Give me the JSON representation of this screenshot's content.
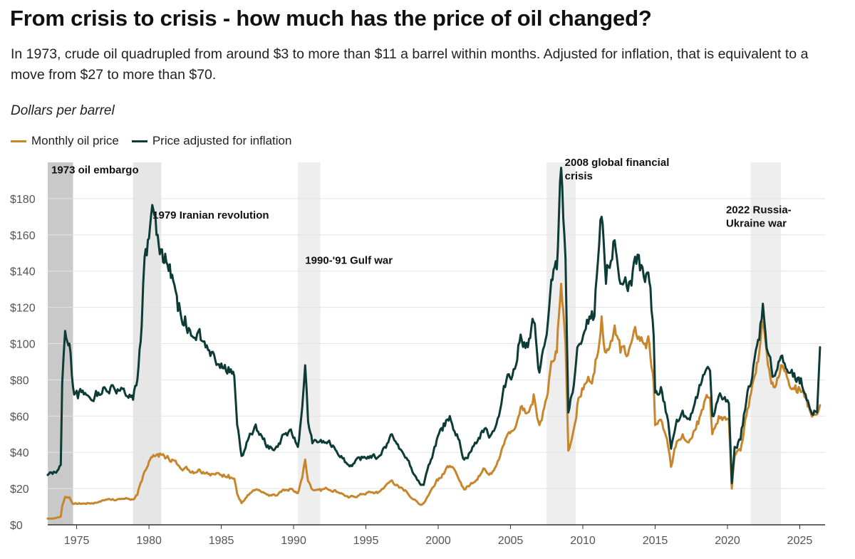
{
  "title": "From crisis to crisis - how much has the price of oil changed?",
  "subtitle": "In 1973, crude oil quadrupled from around $3 to more than $11 a barrel within months. Adjusted for inflation, that is equivalent to a move from $27 to more than $70.",
  "unit_label": "Dollars per barrel",
  "colors": {
    "nominal": "#c8862c",
    "real": "#0d3b36",
    "grid": "#e3e3e3",
    "axis": "#333333"
  },
  "legend": {
    "nominal": "Monthly oil price",
    "real": "Price adjusted for inflation"
  },
  "chart_data": {
    "type": "line",
    "title": "From crisis to crisis - how much has the price of oil changed?",
    "ylabel": "Dollars per barrel",
    "xlim": [
      1973.0,
      2026.75
    ],
    "ylim": [
      0,
      200
    ],
    "y_ticks": [
      0,
      20,
      40,
      60,
      80,
      100,
      120,
      140,
      160,
      180
    ],
    "y_tick_labels": [
      "$0",
      "$20",
      "$40",
      "$60",
      "$80",
      "$100",
      "$120",
      "$140",
      "$160",
      "$180"
    ],
    "x_ticks": [
      1975,
      1980,
      1985,
      1990,
      1995,
      2000,
      2005,
      2010,
      2015,
      2020,
      2025
    ],
    "x_tick_labels": [
      "1975",
      "1980",
      "1985",
      "1990",
      "1995",
      "2000",
      "2005",
      "2010",
      "2015",
      "2020",
      "2025"
    ],
    "events": [
      {
        "label": "1973 oil embargo",
        "start": 1973.0,
        "end": 1974.75,
        "shade": "#c9c9c9",
        "label_lines": [
          "1973 oil embargo"
        ],
        "label_x": 1973.25,
        "label_y": 194
      },
      {
        "label": "1979 Iranian revolution",
        "start": 1978.9,
        "end": 1980.85,
        "shade": "#e6e6e6",
        "label_lines": [
          "1979 Iranian revolution"
        ],
        "label_x": 1980.25,
        "label_y": 169
      },
      {
        "label": "1990-'91 Gulf war",
        "start": 1990.3,
        "end": 1991.85,
        "shade": "#eeeeee",
        "label_lines": [
          "1990-'91 Gulf war"
        ],
        "label_x": 1990.8,
        "label_y": 144
      },
      {
        "label": "2008 global financial crisis",
        "start": 2007.5,
        "end": 2009.5,
        "shade": "#eeeeee",
        "label_lines": [
          "2008 global financial",
          "crisis"
        ],
        "label_x": 2008.75,
        "label_y": 198
      },
      {
        "label": "2022 Russia-Ukraine war",
        "start": 2021.6,
        "end": 2023.7,
        "shade": "#eeeeee",
        "label_lines": [
          "2022 Russia-",
          "Ukraine war"
        ],
        "label_x": 2019.9,
        "label_y": 172
      }
    ],
    "series": [
      {
        "name": "Monthly oil price",
        "color": "#c8862c",
        "x": [
          1973.0,
          1973.5,
          1973.9,
          1974.0,
          1974.2,
          1974.5,
          1974.75,
          1975.0,
          1975.5,
          1976.0,
          1976.5,
          1977.0,
          1977.5,
          1978.0,
          1978.5,
          1978.9,
          1979.2,
          1979.5,
          1979.7,
          1980.0,
          1980.3,
          1980.6,
          1980.9,
          1981.2,
          1981.6,
          1982.0,
          1982.5,
          1983.0,
          1983.5,
          1984.0,
          1984.5,
          1985.0,
          1985.5,
          1985.9,
          1986.1,
          1986.4,
          1986.6,
          1986.9,
          1987.3,
          1987.8,
          1988.3,
          1988.9,
          1989.3,
          1989.9,
          1990.3,
          1990.6,
          1990.8,
          1991.0,
          1991.3,
          1991.8,
          1992.3,
          1992.8,
          1993.3,
          1993.8,
          1994.2,
          1994.8,
          1995.3,
          1995.8,
          1996.3,
          1996.8,
          1997.3,
          1997.8,
          1998.3,
          1998.8,
          1999.0,
          1999.5,
          1999.9,
          2000.3,
          2000.8,
          2001.3,
          2001.8,
          2002.2,
          2002.8,
          2003.2,
          2003.6,
          2004.2,
          2004.8,
          2005.3,
          2005.7,
          2006.2,
          2006.6,
          2007.0,
          2007.5,
          2007.9,
          2008.2,
          2008.5,
          2008.8,
          2009.0,
          2009.3,
          2009.7,
          2010.2,
          2010.8,
          2011.3,
          2011.6,
          2012.2,
          2012.6,
          2013.2,
          2013.7,
          2014.3,
          2014.6,
          2014.9,
          2015.0,
          2015.4,
          2015.9,
          2016.1,
          2016.5,
          2016.9,
          2017.4,
          2017.9,
          2018.4,
          2018.8,
          2018.95,
          2019.4,
          2019.9,
          2020.1,
          2020.3,
          2020.5,
          2020.9,
          2021.3,
          2021.8,
          2022.2,
          2022.45,
          2022.8,
          2023.2,
          2023.7,
          2024.2,
          2024.7,
          2025.0,
          2025.4,
          2025.7,
          2026.0,
          2026.2,
          2026.4
        ],
        "values": [
          3.4,
          3.6,
          4.5,
          10.5,
          15.5,
          15.2,
          11.5,
          11.6,
          11.8,
          11.9,
          12.5,
          13.9,
          14.2,
          14.2,
          14.5,
          14.0,
          16.5,
          24.0,
          29.5,
          35.0,
          38.5,
          39.0,
          38.5,
          37.0,
          36.0,
          33.0,
          31.5,
          29.5,
          30.5,
          29.0,
          28.0,
          27.5,
          27.5,
          25.5,
          17.0,
          12.0,
          13.5,
          16.5,
          19.0,
          18.0,
          16.0,
          16.5,
          19.5,
          19.8,
          17.5,
          26.0,
          36.0,
          24.0,
          19.5,
          19.8,
          20.0,
          19.0,
          17.5,
          15.0,
          15.5,
          17.0,
          18.0,
          17.5,
          21.0,
          24.5,
          20.5,
          18.5,
          14.0,
          11.0,
          12.0,
          19.0,
          25.0,
          28.0,
          32.5,
          27.5,
          19.5,
          22.0,
          27.0,
          31.0,
          28.5,
          36.0,
          50.0,
          53.0,
          65.0,
          62.0,
          72.0,
          55.0,
          70.0,
          90.0,
          95.0,
          133.0,
          100.0,
          41.0,
          50.0,
          70.0,
          78.0,
          84.0,
          115.0,
          95.0,
          110.0,
          95.0,
          97.0,
          105.0,
          100.0,
          100.0,
          78.0,
          55.0,
          58.0,
          43.0,
          32.0,
          46.0,
          50.0,
          47.0,
          57.0,
          68.0,
          70.0,
          50.0,
          60.0,
          58.0,
          58.0,
          20.0,
          38.0,
          41.0,
          60.0,
          80.0,
          95.0,
          112.0,
          88.0,
          76.0,
          88.0,
          80.0,
          77.0,
          75.0,
          70.0,
          63.0,
          61.0,
          61.0,
          66.0
        ],
        "jitter_seed": 7,
        "jitter_scale": 0.07
      },
      {
        "name": "Price adjusted for inflation",
        "color": "#0d3b36",
        "x": [
          1973.0,
          1973.5,
          1973.9,
          1974.0,
          1974.2,
          1974.5,
          1974.75,
          1975.0,
          1975.5,
          1976.0,
          1976.5,
          1977.0,
          1977.5,
          1978.0,
          1978.5,
          1978.9,
          1979.2,
          1979.5,
          1979.7,
          1980.0,
          1980.3,
          1980.6,
          1980.9,
          1981.2,
          1981.6,
          1982.0,
          1982.5,
          1983.0,
          1983.5,
          1984.0,
          1984.5,
          1985.0,
          1985.5,
          1985.9,
          1986.1,
          1986.4,
          1986.6,
          1986.9,
          1987.3,
          1987.8,
          1988.3,
          1988.9,
          1989.3,
          1989.9,
          1990.3,
          1990.6,
          1990.8,
          1991.0,
          1991.3,
          1991.8,
          1992.3,
          1992.8,
          1993.3,
          1993.8,
          1994.2,
          1994.8,
          1995.3,
          1995.8,
          1996.3,
          1996.8,
          1997.3,
          1997.8,
          1998.3,
          1998.8,
          1999.0,
          1999.5,
          1999.9,
          2000.3,
          2000.8,
          2001.3,
          2001.8,
          2002.2,
          2002.8,
          2003.2,
          2003.6,
          2004.2,
          2004.8,
          2005.3,
          2005.7,
          2006.2,
          2006.6,
          2007.0,
          2007.5,
          2007.9,
          2008.2,
          2008.5,
          2008.8,
          2009.0,
          2009.3,
          2009.7,
          2010.2,
          2010.8,
          2011.3,
          2011.6,
          2012.2,
          2012.6,
          2013.2,
          2013.7,
          2014.3,
          2014.6,
          2014.9,
          2015.0,
          2015.4,
          2015.9,
          2016.1,
          2016.5,
          2016.9,
          2017.4,
          2017.9,
          2018.4,
          2018.8,
          2018.95,
          2019.4,
          2019.9,
          2020.1,
          2020.3,
          2020.5,
          2020.9,
          2021.3,
          2021.8,
          2022.2,
          2022.45,
          2022.8,
          2023.2,
          2023.7,
          2024.2,
          2024.7,
          2025.0,
          2025.4,
          2025.7,
          2026.0,
          2026.2,
          2026.4
        ],
        "values": [
          27.5,
          29.0,
          33.0,
          78.0,
          107.0,
          100.0,
          76.0,
          74.0,
          72.0,
          69.0,
          73.0,
          75.0,
          77.0,
          74.0,
          71.0,
          69.0,
          80.0,
          110.0,
          148.0,
          158.0,
          174.0,
          160.0,
          152.0,
          145.0,
          138.0,
          118.0,
          115.0,
          104.0,
          108.0,
          99.0,
          94.0,
          89.0,
          87.0,
          82.0,
          55.0,
          38.0,
          41.0,
          48.0,
          54.0,
          49.0,
          42.0,
          43.0,
          50.0,
          50.0,
          43.0,
          65.0,
          88.0,
          57.0,
          45.0,
          46.0,
          45.0,
          43.0,
          38.0,
          33.0,
          34.0,
          37.0,
          38.0,
          37.0,
          43.0,
          50.0,
          42.0,
          37.0,
          28.0,
          22.0,
          22.0,
          36.0,
          47.0,
          52.0,
          60.0,
          50.0,
          36.0,
          40.0,
          48.0,
          53.0,
          49.0,
          60.0,
          83.0,
          86.0,
          105.0,
          98.0,
          112.0,
          84.0,
          105.0,
          135.0,
          141.0,
          197.0,
          147.0,
          62.0,
          73.0,
          99.0,
          108.0,
          115.0,
          170.0,
          133.0,
          157.0,
          133.0,
          134.0,
          144.0,
          134.0,
          134.0,
          104.0,
          73.0,
          76.0,
          57.0,
          42.0,
          58.0,
          63.0,
          58.0,
          70.0,
          83.0,
          85.0,
          60.0,
          71.0,
          68.0,
          67.0,
          23.0,
          43.0,
          47.0,
          68.0,
          88.0,
          102.0,
          122.0,
          95.0,
          82.0,
          93.0,
          84.0,
          80.0,
          78.0,
          72.0,
          64.0,
          63.0,
          62.0,
          98.0
        ],
        "jitter_seed": 13,
        "jitter_scale": 0.07
      }
    ]
  }
}
